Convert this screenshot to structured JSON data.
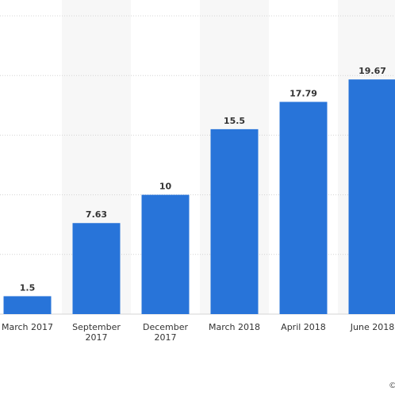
{
  "chart_data": {
    "type": "bar",
    "categories": [
      [
        "March 2017"
      ],
      [
        "September",
        "2017"
      ],
      [
        "December",
        "2017"
      ],
      [
        "March 2018"
      ],
      [
        "April 2018"
      ],
      [
        "June 2018"
      ]
    ],
    "values": [
      1.5,
      7.63,
      10,
      15.5,
      17.79,
      19.67
    ],
    "value_labels": [
      "1.5",
      "7.63",
      "10",
      "15.5",
      "17.79",
      "19.67"
    ],
    "ylim": [
      0,
      25
    ],
    "grid": true,
    "bar_color": "#2874d9",
    "alt_column_shading": "#f7f7f7",
    "gridline_color": "#d4d4d4"
  },
  "footer": {
    "copyright": "©"
  }
}
